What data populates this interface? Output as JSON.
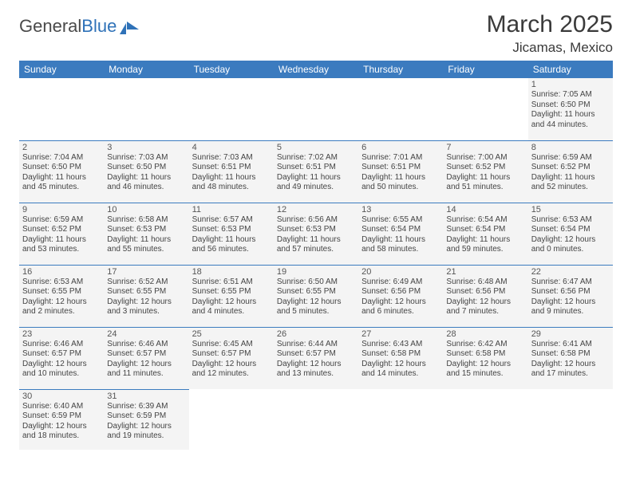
{
  "logo": {
    "text1": "General",
    "text2": "Blue"
  },
  "title": "March 2025",
  "location": "Jicamas, Mexico",
  "colors": {
    "header_bg": "#3b7bbf",
    "header_text": "#ffffff",
    "cell_bg": "#f4f4f4",
    "border": "#3b7bbf",
    "text": "#444444"
  },
  "dayNames": [
    "Sunday",
    "Monday",
    "Tuesday",
    "Wednesday",
    "Thursday",
    "Friday",
    "Saturday"
  ],
  "weeks": [
    [
      null,
      null,
      null,
      null,
      null,
      null,
      {
        "n": "1",
        "sr": "7:05 AM",
        "ss": "6:50 PM",
        "dl": "11 hours and 44 minutes."
      }
    ],
    [
      {
        "n": "2",
        "sr": "7:04 AM",
        "ss": "6:50 PM",
        "dl": "11 hours and 45 minutes."
      },
      {
        "n": "3",
        "sr": "7:03 AM",
        "ss": "6:50 PM",
        "dl": "11 hours and 46 minutes."
      },
      {
        "n": "4",
        "sr": "7:03 AM",
        "ss": "6:51 PM",
        "dl": "11 hours and 48 minutes."
      },
      {
        "n": "5",
        "sr": "7:02 AM",
        "ss": "6:51 PM",
        "dl": "11 hours and 49 minutes."
      },
      {
        "n": "6",
        "sr": "7:01 AM",
        "ss": "6:51 PM",
        "dl": "11 hours and 50 minutes."
      },
      {
        "n": "7",
        "sr": "7:00 AM",
        "ss": "6:52 PM",
        "dl": "11 hours and 51 minutes."
      },
      {
        "n": "8",
        "sr": "6:59 AM",
        "ss": "6:52 PM",
        "dl": "11 hours and 52 minutes."
      }
    ],
    [
      {
        "n": "9",
        "sr": "6:59 AM",
        "ss": "6:52 PM",
        "dl": "11 hours and 53 minutes."
      },
      {
        "n": "10",
        "sr": "6:58 AM",
        "ss": "6:53 PM",
        "dl": "11 hours and 55 minutes."
      },
      {
        "n": "11",
        "sr": "6:57 AM",
        "ss": "6:53 PM",
        "dl": "11 hours and 56 minutes."
      },
      {
        "n": "12",
        "sr": "6:56 AM",
        "ss": "6:53 PM",
        "dl": "11 hours and 57 minutes."
      },
      {
        "n": "13",
        "sr": "6:55 AM",
        "ss": "6:54 PM",
        "dl": "11 hours and 58 minutes."
      },
      {
        "n": "14",
        "sr": "6:54 AM",
        "ss": "6:54 PM",
        "dl": "11 hours and 59 minutes."
      },
      {
        "n": "15",
        "sr": "6:53 AM",
        "ss": "6:54 PM",
        "dl": "12 hours and 0 minutes."
      }
    ],
    [
      {
        "n": "16",
        "sr": "6:53 AM",
        "ss": "6:55 PM",
        "dl": "12 hours and 2 minutes."
      },
      {
        "n": "17",
        "sr": "6:52 AM",
        "ss": "6:55 PM",
        "dl": "12 hours and 3 minutes."
      },
      {
        "n": "18",
        "sr": "6:51 AM",
        "ss": "6:55 PM",
        "dl": "12 hours and 4 minutes."
      },
      {
        "n": "19",
        "sr": "6:50 AM",
        "ss": "6:55 PM",
        "dl": "12 hours and 5 minutes."
      },
      {
        "n": "20",
        "sr": "6:49 AM",
        "ss": "6:56 PM",
        "dl": "12 hours and 6 minutes."
      },
      {
        "n": "21",
        "sr": "6:48 AM",
        "ss": "6:56 PM",
        "dl": "12 hours and 7 minutes."
      },
      {
        "n": "22",
        "sr": "6:47 AM",
        "ss": "6:56 PM",
        "dl": "12 hours and 9 minutes."
      }
    ],
    [
      {
        "n": "23",
        "sr": "6:46 AM",
        "ss": "6:57 PM",
        "dl": "12 hours and 10 minutes."
      },
      {
        "n": "24",
        "sr": "6:46 AM",
        "ss": "6:57 PM",
        "dl": "12 hours and 11 minutes."
      },
      {
        "n": "25",
        "sr": "6:45 AM",
        "ss": "6:57 PM",
        "dl": "12 hours and 12 minutes."
      },
      {
        "n": "26",
        "sr": "6:44 AM",
        "ss": "6:57 PM",
        "dl": "12 hours and 13 minutes."
      },
      {
        "n": "27",
        "sr": "6:43 AM",
        "ss": "6:58 PM",
        "dl": "12 hours and 14 minutes."
      },
      {
        "n": "28",
        "sr": "6:42 AM",
        "ss": "6:58 PM",
        "dl": "12 hours and 15 minutes."
      },
      {
        "n": "29",
        "sr": "6:41 AM",
        "ss": "6:58 PM",
        "dl": "12 hours and 17 minutes."
      }
    ],
    [
      {
        "n": "30",
        "sr": "6:40 AM",
        "ss": "6:59 PM",
        "dl": "12 hours and 18 minutes."
      },
      {
        "n": "31",
        "sr": "6:39 AM",
        "ss": "6:59 PM",
        "dl": "12 hours and 19 minutes."
      },
      null,
      null,
      null,
      null,
      null
    ]
  ],
  "labels": {
    "sunrise": "Sunrise:",
    "sunset": "Sunset:",
    "daylight": "Daylight:"
  }
}
